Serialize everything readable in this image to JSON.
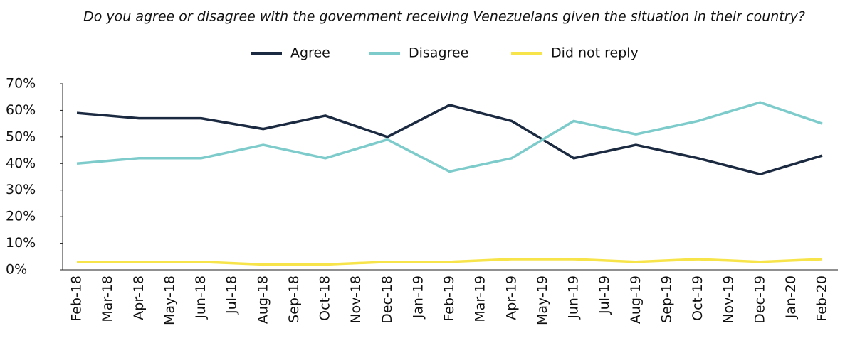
{
  "chart_data": {
    "type": "line",
    "title": "Do you agree or disagree with the government receiving Venezuelans given the situation in their country?",
    "xticks": [
      "Feb-18",
      "Mar-18",
      "Apr-18",
      "May-18",
      "Jun-18",
      "Jul-18",
      "Aug-18",
      "Sep-18",
      "Oct-18",
      "Nov-18",
      "Dec-18",
      "Jan-19",
      "Feb-19",
      "Mar-19",
      "Apr-19",
      "May-19",
      "Jun-19",
      "Jul-19",
      "Aug-19",
      "Sep-19",
      "Oct-19",
      "Nov-19",
      "Dec-19",
      "Jan-20",
      "Feb-20"
    ],
    "x": [
      "Feb-18",
      "Apr-18",
      "Jun-18",
      "Aug-18",
      "Oct-18",
      "Dec-18",
      "Feb-19",
      "Apr-19",
      "Jun-19",
      "Aug-19",
      "Oct-19",
      "Dec-19",
      "Feb-20"
    ],
    "series": [
      {
        "name": "Agree",
        "color": "#1b2a41",
        "values": [
          59,
          57,
          57,
          53,
          58,
          50,
          62,
          56,
          42,
          47,
          42,
          36,
          43
        ]
      },
      {
        "name": "Disagree",
        "color": "#7ecbcb",
        "values": [
          40,
          42,
          42,
          47,
          42,
          49,
          37,
          42,
          56,
          51,
          56,
          63,
          55
        ]
      },
      {
        "name": "Did not reply",
        "color": "#f7e44a",
        "values": [
          3,
          3,
          3,
          2,
          2,
          3,
          3,
          4,
          4,
          3,
          4,
          3,
          4
        ]
      }
    ],
    "ylim": [
      0,
      70
    ],
    "yticks": [
      {
        "value": 0,
        "label": "0%"
      },
      {
        "value": 10,
        "label": "10%"
      },
      {
        "value": 20,
        "label": "20%"
      },
      {
        "value": 30,
        "label": "30%"
      },
      {
        "value": 40,
        "label": "40%"
      },
      {
        "value": 50,
        "label": "50%"
      },
      {
        "value": 60,
        "label": "60%"
      },
      {
        "value": 70,
        "label": "70%"
      }
    ],
    "legend": "top"
  }
}
